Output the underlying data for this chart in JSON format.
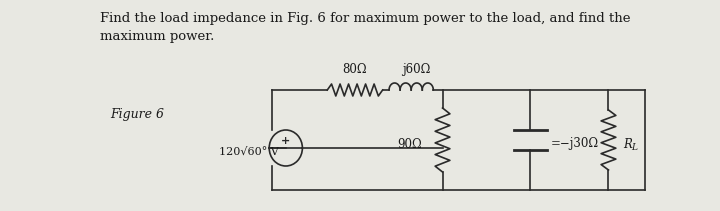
{
  "title_line1": "Find the load impedance in Fig. 6 for maximum power to the load, and find the",
  "title_line2": "maximum power.",
  "figure_label": "Figure 6",
  "source_label": "120√60° V",
  "r1_label": "80Ω",
  "l1_label": "j60Ω",
  "r2_label": "90Ω",
  "c1_label": "=−j30Ω",
  "rl_label": "R",
  "rl_sub": "L",
  "bg_color": "#e8e8e2",
  "text_color": "#1a1a1a",
  "circuit_color": "#2a2a2a",
  "title_fontsize": 9.5,
  "label_fontsize": 8.5
}
